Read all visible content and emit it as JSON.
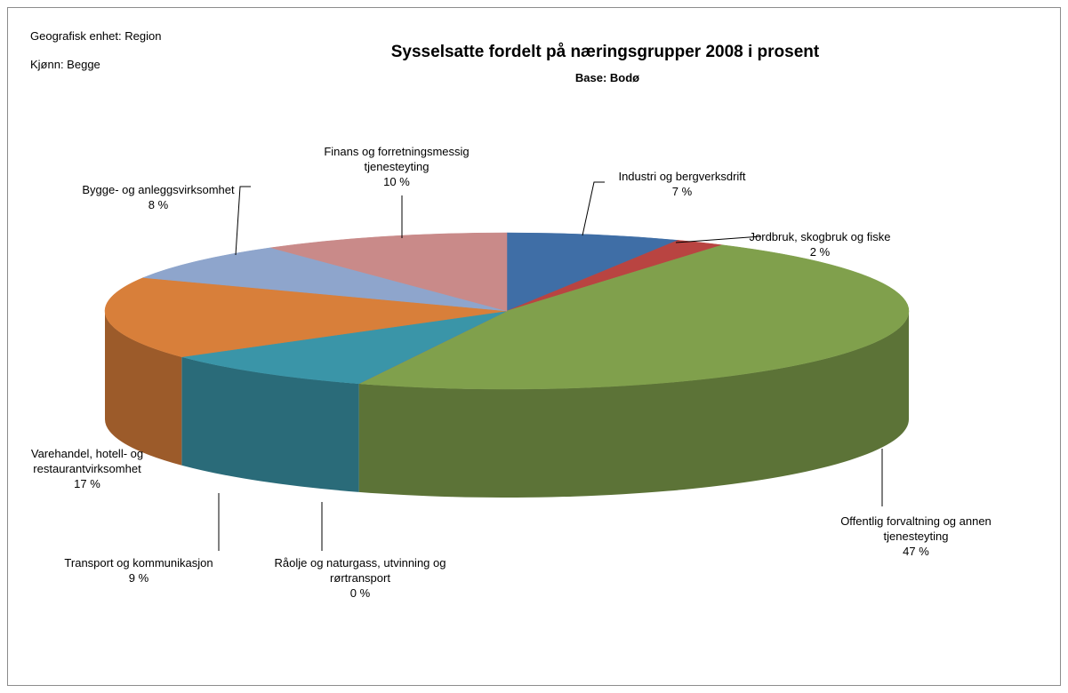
{
  "header": {
    "geo": "Geografisk enhet: Region",
    "gender": "Kjønn: Begge"
  },
  "chart_data": {
    "type": "pie3d",
    "title": "Sysselsatte fordelt på næringsgrupper 2008 i prosent",
    "subtitle": "Base: Bodø",
    "categories": [
      "Industri og bergverksdrift",
      "Jordbruk, skogbruk og fiske",
      "Offentlig forvaltning og annen tjenesteyting",
      "Råolje og naturgass, utvinning og rørtransport",
      "Transport og kommunikasjon",
      "Varehandel, hotell- og restaurantvirksomhet",
      "Bygge- og anleggsvirksomhet",
      "Finans og forretningsmessig tjenesteyting"
    ],
    "values": [
      7,
      2,
      47,
      0,
      9,
      17,
      8,
      10
    ],
    "value_labels": [
      "7 %",
      "2 %",
      "47 %",
      "0 %",
      "9 %",
      "17 %",
      "8 %",
      "10 %"
    ],
    "colors": [
      "#3f6ea6",
      "#b94441",
      "#80a04c",
      "#7f63a0",
      "#3a95a8",
      "#d87f3a",
      "#8ea5cc",
      "#c98a89"
    ]
  }
}
